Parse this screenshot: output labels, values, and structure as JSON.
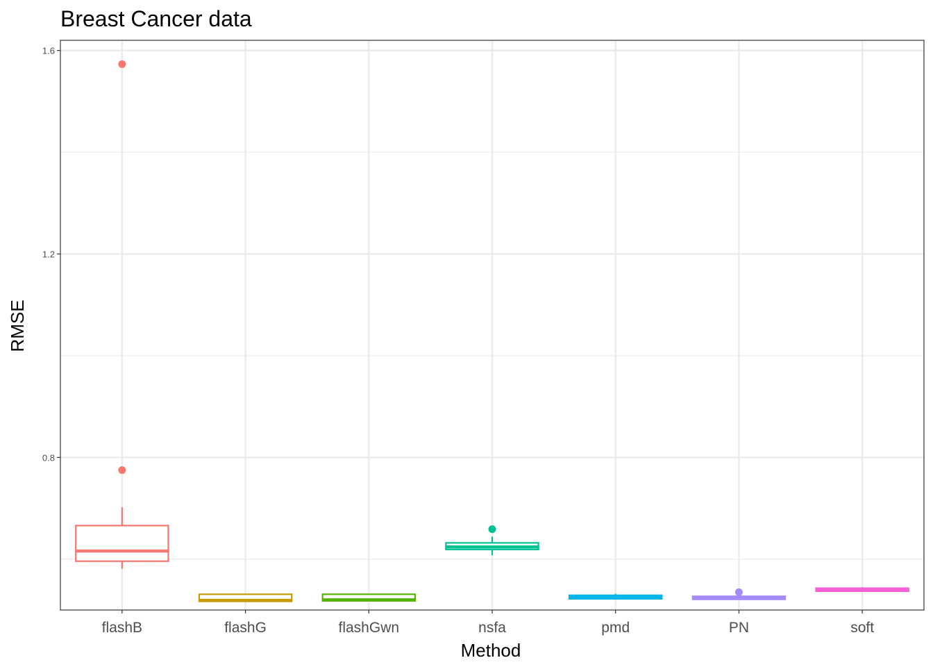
{
  "chart_data": {
    "type": "box",
    "title": "Breast Cancer data",
    "xlabel": "Method",
    "ylabel": "RMSE",
    "ylim": [
      0.5,
      1.62
    ],
    "y_ticks": [
      0.8,
      1.2,
      1.6
    ],
    "y_tick_labels": [
      "0.8",
      "1.2",
      "1.6"
    ],
    "y_minor_ticks": [
      0.6,
      1.0,
      1.4
    ],
    "grid": true,
    "legend": "none",
    "categories": [
      "flashB",
      "flashG",
      "flashGwn",
      "nsfa",
      "pmd",
      "PN",
      "soft"
    ],
    "series": [
      {
        "category": "flashB",
        "color": "#F8766D",
        "whisker_low": 0.581,
        "q1": 0.596,
        "median": 0.616,
        "q3": 0.666,
        "whisker_high": 0.702,
        "outliers": [
          1.573,
          0.775
        ]
      },
      {
        "category": "flashG",
        "color": "#C49A00",
        "whisker_low": 0.516,
        "q1": 0.517,
        "median": 0.519,
        "q3": 0.531,
        "whisker_high": 0.532,
        "outliers": []
      },
      {
        "category": "flashGwn",
        "color": "#53B400",
        "whisker_low": 0.517,
        "q1": 0.518,
        "median": 0.52,
        "q3": 0.531,
        "whisker_high": 0.532,
        "outliers": []
      },
      {
        "category": "nsfa",
        "color": "#00C094",
        "whisker_low": 0.608,
        "q1": 0.619,
        "median": 0.624,
        "q3": 0.632,
        "whisker_high": 0.644,
        "outliers": [
          0.659
        ]
      },
      {
        "category": "pmd",
        "color": "#00B6EB",
        "whisker_low": 0.521,
        "q1": 0.522,
        "median": 0.525,
        "q3": 0.529,
        "whisker_high": 0.532,
        "outliers": []
      },
      {
        "category": "PN",
        "color": "#A58AFF",
        "whisker_low": 0.52,
        "q1": 0.521,
        "median": 0.523,
        "q3": 0.527,
        "whisker_high": 0.529,
        "outliers": [
          0.535
        ]
      },
      {
        "category": "soft",
        "color": "#FB61D7",
        "whisker_low": 0.536,
        "q1": 0.537,
        "median": 0.539,
        "q3": 0.543,
        "whisker_high": 0.545,
        "outliers": []
      }
    ]
  }
}
